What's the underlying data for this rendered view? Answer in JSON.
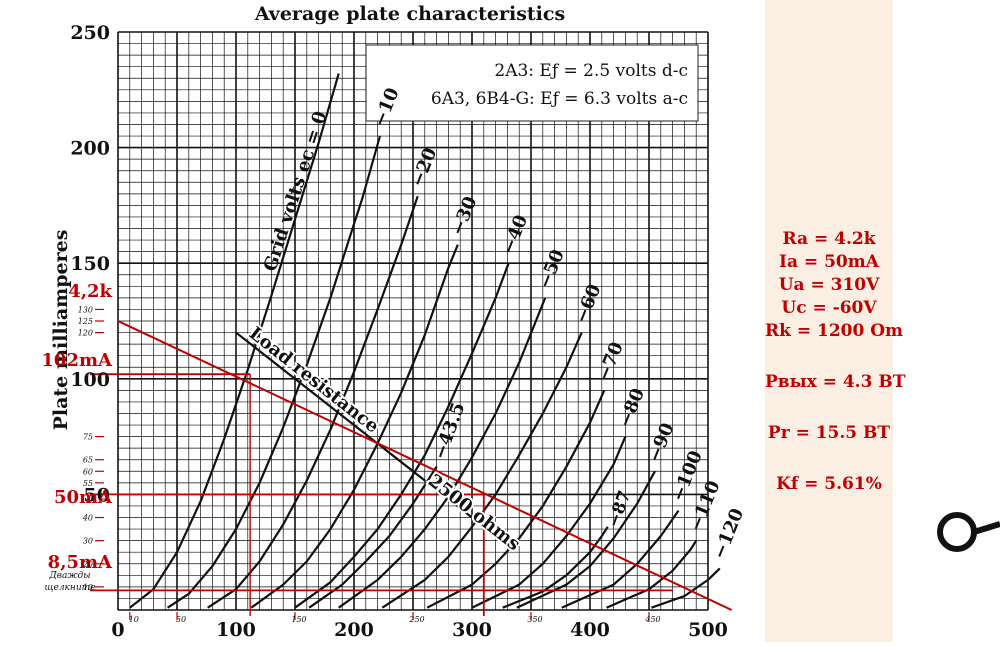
{
  "chart_data": {
    "type": "line",
    "title": "Average plate characteristics",
    "xlabel": "",
    "ylabel": "Plate milliamperes",
    "xlim": [
      0,
      500
    ],
    "ylim": [
      0,
      250
    ],
    "x_ticks": [
      "0",
      "100",
      "200",
      "300",
      "400",
      "500"
    ],
    "y_ticks": [
      "50",
      "100",
      "150",
      "200",
      "250"
    ],
    "legend": {
      "line1": "2A3: Eƒ = 2.5 volts d-c",
      "line2": "6A3, 6B4-G: Eƒ = 6.3 volts a-c"
    },
    "curve_labels_title": "Grid volts eᴄ = 0",
    "series": [
      {
        "name": "0",
        "label_text": "Grid volts eᴄ = 0",
        "x": [
          10,
          30,
          50,
          70,
          90,
          110,
          130,
          150,
          170,
          187
        ],
        "y": [
          1,
          9,
          25,
          47,
          74,
          104,
          136,
          169,
          202,
          232
        ]
      },
      {
        "name": "-10",
        "label_text": "−10",
        "x": [
          42,
          60,
          80,
          100,
          120,
          140,
          160,
          180,
          200,
          207,
          222
        ],
        "y": [
          1,
          7,
          19,
          35,
          55,
          79,
          106,
          135,
          167,
          178,
          205
        ]
      },
      {
        "name": "-20",
        "label_text": "−20",
        "x": [
          76,
          100,
          120,
          140,
          160,
          180,
          200,
          220,
          240,
          254
        ],
        "y": [
          1,
          9,
          21,
          37,
          56,
          78,
          103,
          130,
          158,
          179
        ]
      },
      {
        "name": "-30",
        "label_text": "−30",
        "x": [
          113,
          140,
          160,
          180,
          200,
          220,
          240,
          260,
          280,
          288
        ],
        "y": [
          1,
          11,
          21,
          35,
          52,
          72,
          94,
          119,
          148,
          158
        ]
      },
      {
        "name": "-40",
        "label_text": "−40",
        "x": [
          150,
          180,
          200,
          220,
          240,
          260,
          280,
          300,
          320,
          331
        ],
        "y": [
          1,
          12,
          23,
          35,
          50,
          67,
          88,
          111,
          135,
          150
        ]
      },
      {
        "name": "-43.5",
        "label_text": "−43.5",
        "x": [
          162,
          190,
          210,
          230,
          250,
          270
        ],
        "y": [
          1,
          11,
          21,
          32,
          46,
          62
        ]
      },
      {
        "name": "-50",
        "label_text": "−50",
        "x": [
          187,
          220,
          240,
          260,
          280,
          300,
          320,
          340,
          362
        ],
        "y": [
          1,
          13,
          23,
          35,
          49,
          66,
          85,
          107,
          135
        ]
      },
      {
        "name": "-60",
        "label_text": "−60",
        "x": [
          224,
          260,
          280,
          300,
          320,
          340,
          360,
          380,
          393
        ],
        "y": [
          1,
          13,
          23,
          36,
          50,
          67,
          85,
          105,
          120
        ]
      },
      {
        "name": "-70",
        "label_text": "−70",
        "x": [
          262,
          300,
          320,
          340,
          360,
          380,
          400,
          412
        ],
        "y": [
          1,
          11,
          20,
          31,
          45,
          62,
          81,
          95
        ]
      },
      {
        "name": "-80",
        "label_text": "−80",
        "x": [
          300,
          340,
          360,
          380,
          400,
          420,
          430
        ],
        "y": [
          1,
          11,
          20,
          32,
          46,
          63,
          75
        ]
      },
      {
        "name": "-87",
        "label_text": "−87",
        "x": [
          326,
          360,
          380,
          400,
          410,
          415
        ],
        "y": [
          1,
          8,
          15,
          25,
          32,
          36
        ]
      },
      {
        "name": "-90",
        "label_text": "−90",
        "x": [
          338,
          380,
          400,
          420,
          440,
          455
        ],
        "y": [
          1,
          11,
          19,
          31,
          46,
          60
        ]
      },
      {
        "name": "-100",
        "label_text": "−100",
        "x": [
          376,
          420,
          440,
          460,
          475
        ],
        "y": [
          1,
          11,
          20,
          32,
          43
        ]
      },
      {
        "name": "-110",
        "label_text": "−110",
        "x": [
          414,
          450,
          470,
          485,
          490
        ],
        "y": [
          1,
          9,
          17,
          26,
          30
        ]
      },
      {
        "name": "-120",
        "label_text": "−120",
        "x": [
          452,
          480,
          500,
          510
        ],
        "y": [
          1,
          6,
          13,
          18
        ]
      }
    ],
    "load_line": {
      "label": "Load resistance",
      "value_label": "2500 ohms",
      "x": [
        100,
        300
      ],
      "y": [
        120,
        40
      ]
    },
    "red_load_line": {
      "x": [
        0,
        520
      ],
      "y": [
        125,
        0
      ]
    },
    "annotations": [
      {
        "text": "4,2k",
        "y": 125
      },
      {
        "text": "102mA",
        "y": 102
      },
      {
        "text": "50mA",
        "y": 50
      },
      {
        "text": "8,5mA",
        "y": 8.5
      }
    ],
    "red_guides": [
      {
        "y": 102,
        "x_to": 112
      },
      {
        "y": 50,
        "x_to": 310
      },
      {
        "y": 8.5,
        "x_to": 470
      }
    ],
    "operating_point": {
      "x": 310,
      "y": 50
    },
    "fine_y_ticks": [
      "130",
      "125",
      "120",
      "75",
      "65",
      "60",
      "55",
      "40",
      "30",
      "20",
      "10"
    ],
    "fine_x_ticks": [
      "10",
      "50",
      "150",
      "250",
      "350",
      "450"
    ],
    "hint_text": [
      "Дважды",
      "щелкните"
    ],
    "grid": true
  },
  "info": {
    "ra": "Ra = 4.2k",
    "ia": "Ia = 50mA",
    "ua": "Ua = 310V",
    "uc": "Uc = -60V",
    "rk": "Rk = 1200 Om",
    "pout": "Pвых = 4.3 ВТ",
    "pr": "Pr = 15.5 ВТ",
    "kf": "Kf = 5.61%"
  },
  "colors": {
    "accent": "#c00000",
    "panel": "#fbeee3",
    "ink": "#111111"
  }
}
